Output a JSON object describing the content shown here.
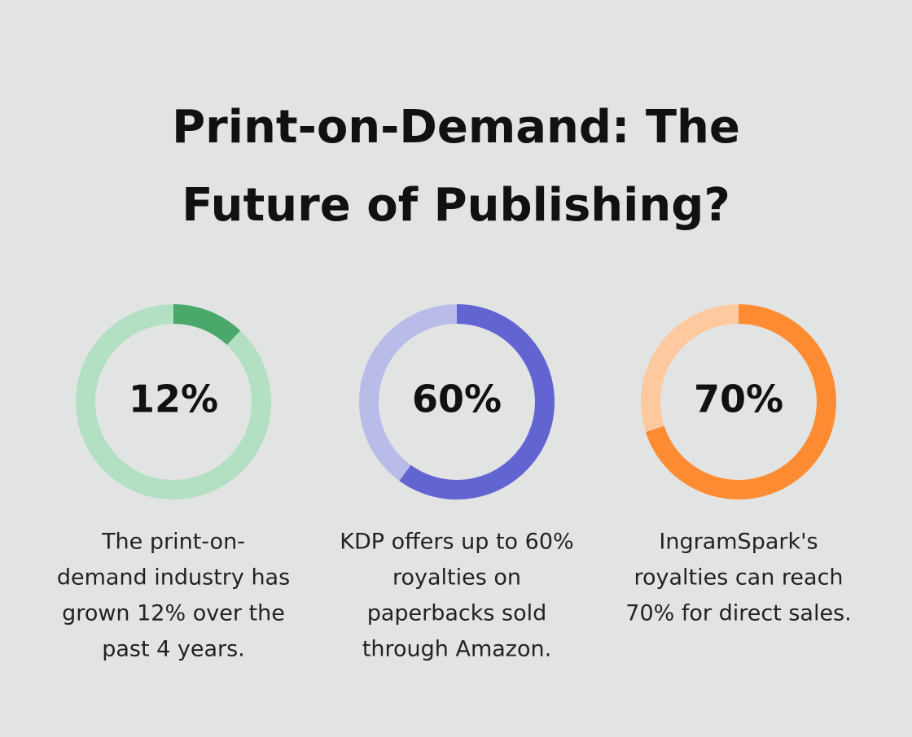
{
  "title_lines": [
    "Print-on-Demand: The",
    "Future of Publishing?"
  ],
  "chart_data": [
    {
      "type": "donut",
      "values": [
        12
      ],
      "value_labels": [
        "12%"
      ],
      "color": "#4aa86b",
      "track_color": "#b3dfc3",
      "caption_lines": [
        "The print-on-",
        "demand industry has",
        "grown 12% over the",
        "past 4 years."
      ]
    },
    {
      "type": "donut",
      "values": [
        60
      ],
      "value_labels": [
        "60%"
      ],
      "color": "#6264d2",
      "track_color": "#b9bce9",
      "caption_lines": [
        "KDP offers up to 60%",
        "royalties on",
        "paperbacks sold",
        "through Amazon."
      ]
    },
    {
      "type": "donut",
      "values": [
        70
      ],
      "value_labels": [
        "70%"
      ],
      "color": "#ff8c33",
      "track_color": "#ffc9a0",
      "caption_lines": [
        "IngramSpark's",
        "royalties can reach",
        "70% for direct sales."
      ]
    }
  ]
}
